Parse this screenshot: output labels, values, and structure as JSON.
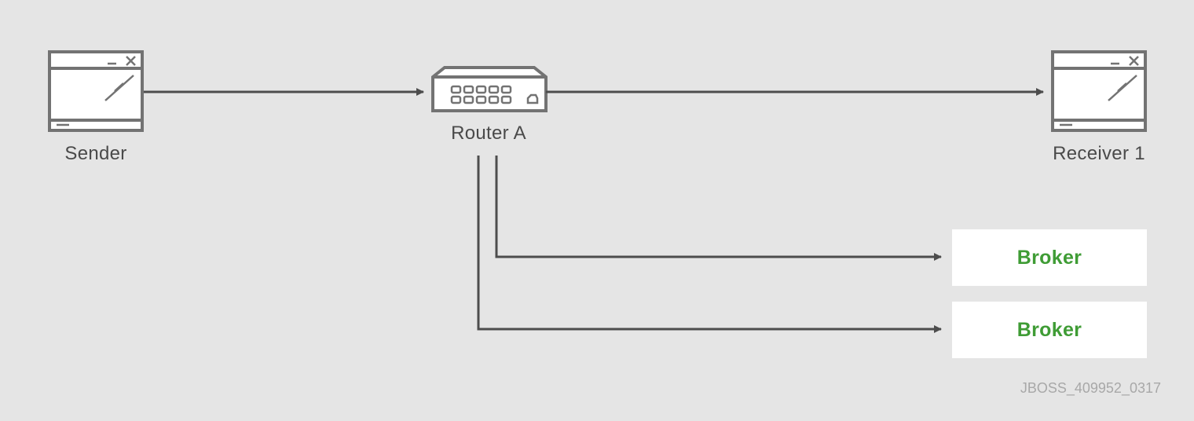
{
  "nodes": {
    "sender": {
      "label": "Sender",
      "icon": "computer-window-icon"
    },
    "router_a": {
      "label": "Router A",
      "icon": "network-router-icon"
    },
    "receiver_1": {
      "label": "Receiver 1",
      "icon": "computer-window-icon"
    },
    "broker_1": {
      "label": "Broker"
    },
    "broker_2": {
      "label": "Broker"
    }
  },
  "edges": [
    {
      "from": "sender",
      "to": "router_a"
    },
    {
      "from": "router_a",
      "to": "receiver_1"
    },
    {
      "from": "router_a",
      "to": "broker_1"
    },
    {
      "from": "router_a",
      "to": "broker_2"
    }
  ],
  "figure_id": "JBOSS_409952_0317",
  "colors": {
    "background": "#e5e5e5",
    "line": "#4d4d4d",
    "icon_stroke": "#737373",
    "broker_text": "#3f9c35",
    "broker_fill": "#ffffff",
    "caption": "#a8a8a8"
  }
}
